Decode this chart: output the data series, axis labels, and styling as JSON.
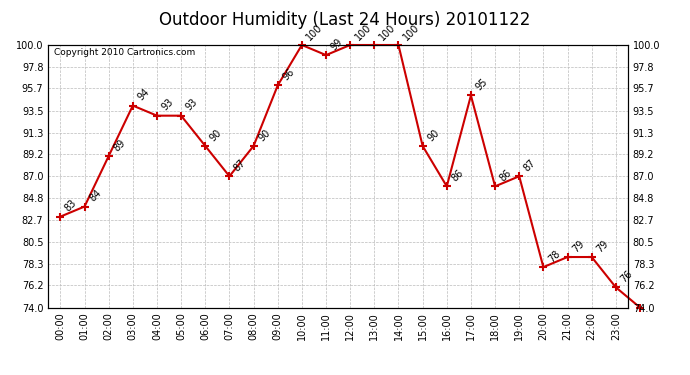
{
  "title": "Outdoor Humidity (Last 24 Hours) 20101122",
  "copyright": "Copyright 2010 Cartronics.com",
  "hours": [
    "00:00",
    "01:00",
    "02:00",
    "03:00",
    "04:00",
    "05:00",
    "06:00",
    "07:00",
    "08:00",
    "09:00",
    "10:00",
    "11:00",
    "12:00",
    "13:00",
    "14:00",
    "15:00",
    "16:00",
    "17:00",
    "18:00",
    "19:00",
    "20:00",
    "21:00",
    "22:00",
    "23:00"
  ],
  "x_values": [
    0,
    1,
    2,
    3,
    4,
    5,
    6,
    7,
    8,
    9,
    10,
    11,
    12,
    13,
    14,
    15,
    16,
    17,
    18,
    19,
    20,
    21,
    22,
    23,
    24
  ],
  "y_values": [
    83,
    84,
    89,
    94,
    93,
    93,
    90,
    87,
    90,
    96,
    100,
    99,
    100,
    100,
    100,
    90,
    86,
    95,
    86,
    87,
    78,
    79,
    79,
    76,
    74
  ],
  "ylim_min": 74.0,
  "ylim_max": 100.0,
  "ytick_labels": [
    "74.0",
    "76.2",
    "78.3",
    "80.5",
    "82.7",
    "84.8",
    "87.0",
    "89.2",
    "91.3",
    "93.5",
    "95.7",
    "97.8",
    "100.0"
  ],
  "ytick_values": [
    74.0,
    76.2,
    78.3,
    80.5,
    82.7,
    84.8,
    87.0,
    89.2,
    91.3,
    93.5,
    95.7,
    97.8,
    100.0
  ],
  "line_color": "#cc0000",
  "marker": "+",
  "marker_size": 6,
  "bg_color": "#ffffff",
  "grid_color": "#bbbbbb",
  "title_fontsize": 12,
  "tick_fontsize": 7,
  "annot_fontsize": 7,
  "copy_fontsize": 6.5
}
